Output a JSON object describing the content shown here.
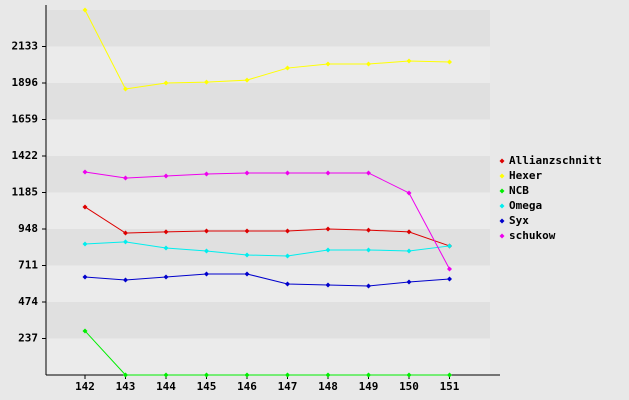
{
  "chart_data": {
    "type": "line",
    "categories": [
      "142",
      "143",
      "144",
      "145",
      "146",
      "147",
      "148",
      "149",
      "150",
      "151"
    ],
    "ylim": [
      0,
      2370
    ],
    "yticks": [
      237,
      474,
      711,
      948,
      1185,
      1422,
      1659,
      1896,
      2133
    ],
    "legend": "right",
    "series": [
      {
        "name": "Allianzschnitt",
        "color": "#dd0000",
        "values": [
          1091,
          922,
          929,
          935,
          935,
          935,
          948,
          941,
          929,
          838
        ]
      },
      {
        "name": "Hexer",
        "color": "#ffff00",
        "values": [
          2370,
          1857,
          1896,
          1902,
          1915,
          1993,
          2019,
          2019,
          2039,
          2032
        ]
      },
      {
        "name": "NCB",
        "color": "#00ee00",
        "values": [
          286,
          0,
          0,
          0,
          0,
          0,
          0,
          0,
          0,
          0
        ]
      },
      {
        "name": "Omega",
        "color": "#00eeee",
        "values": [
          851,
          864,
          825,
          805,
          779,
          773,
          812,
          812,
          805,
          838
        ]
      },
      {
        "name": "Syx",
        "color": "#0000cc",
        "values": [
          636,
          617,
          636,
          656,
          656,
          591,
          584,
          578,
          604,
          623
        ]
      },
      {
        "name": "schukow",
        "color": "#ee00ee",
        "values": [
          1318,
          1279,
          1292,
          1305,
          1312,
          1312,
          1312,
          1312,
          1182,
          688
        ]
      }
    ]
  }
}
